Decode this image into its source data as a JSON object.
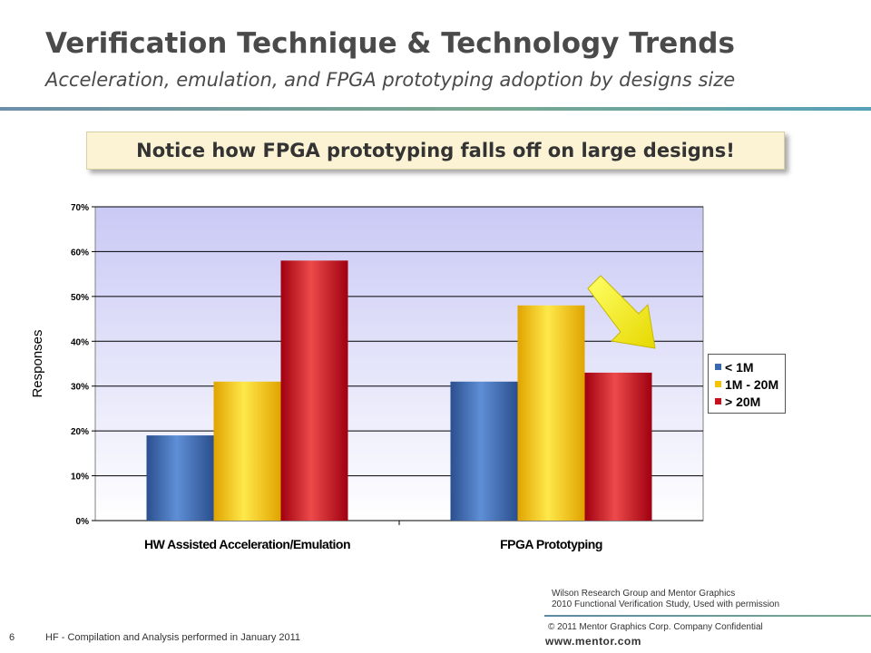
{
  "slide": {
    "title": "Verification Technique & Technology Trends",
    "subtitle": "Acceleration, emulation, and FPGA prototyping adoption by designs size",
    "callout": "Notice how FPGA prototyping falls off on large designs!",
    "source_line1": "Wilson Research Group and Mentor Graphics",
    "source_line2": "2010 Functional Verification Study,  Used with permission",
    "copyright": "© 2011 Mentor Graphics Corp. Company Confidential",
    "url": "www.mentor.com",
    "page_number": "6",
    "footer_note": "HF - Compilation and Analysis performed in January 2011"
  },
  "chart_data": {
    "type": "bar",
    "categories": [
      "HW Assisted Acceleration/Emulation",
      "FPGA Prototyping"
    ],
    "series": [
      {
        "name": "< 1M",
        "values": [
          19,
          31
        ],
        "color": "#3a68b0"
      },
      {
        "name": "1M - 20M",
        "values": [
          31,
          48
        ],
        "color": "#f5c400"
      },
      {
        "name": "> 20M",
        "values": [
          58,
          33
        ],
        "color": "#c8101a"
      }
    ],
    "ylabel": "Responses",
    "xlabel": "",
    "ylim": [
      0,
      70
    ],
    "yticks": [
      0,
      10,
      20,
      30,
      40,
      50,
      60,
      70
    ],
    "ytick_labels": [
      "0%",
      "10%",
      "20%",
      "30%",
      "40%",
      "50%",
      "60%",
      "70%"
    ],
    "grid": true,
    "legend_position": "right",
    "annotation": "yellow arrow pointing down to FPGA Prototyping > 20M bar"
  }
}
